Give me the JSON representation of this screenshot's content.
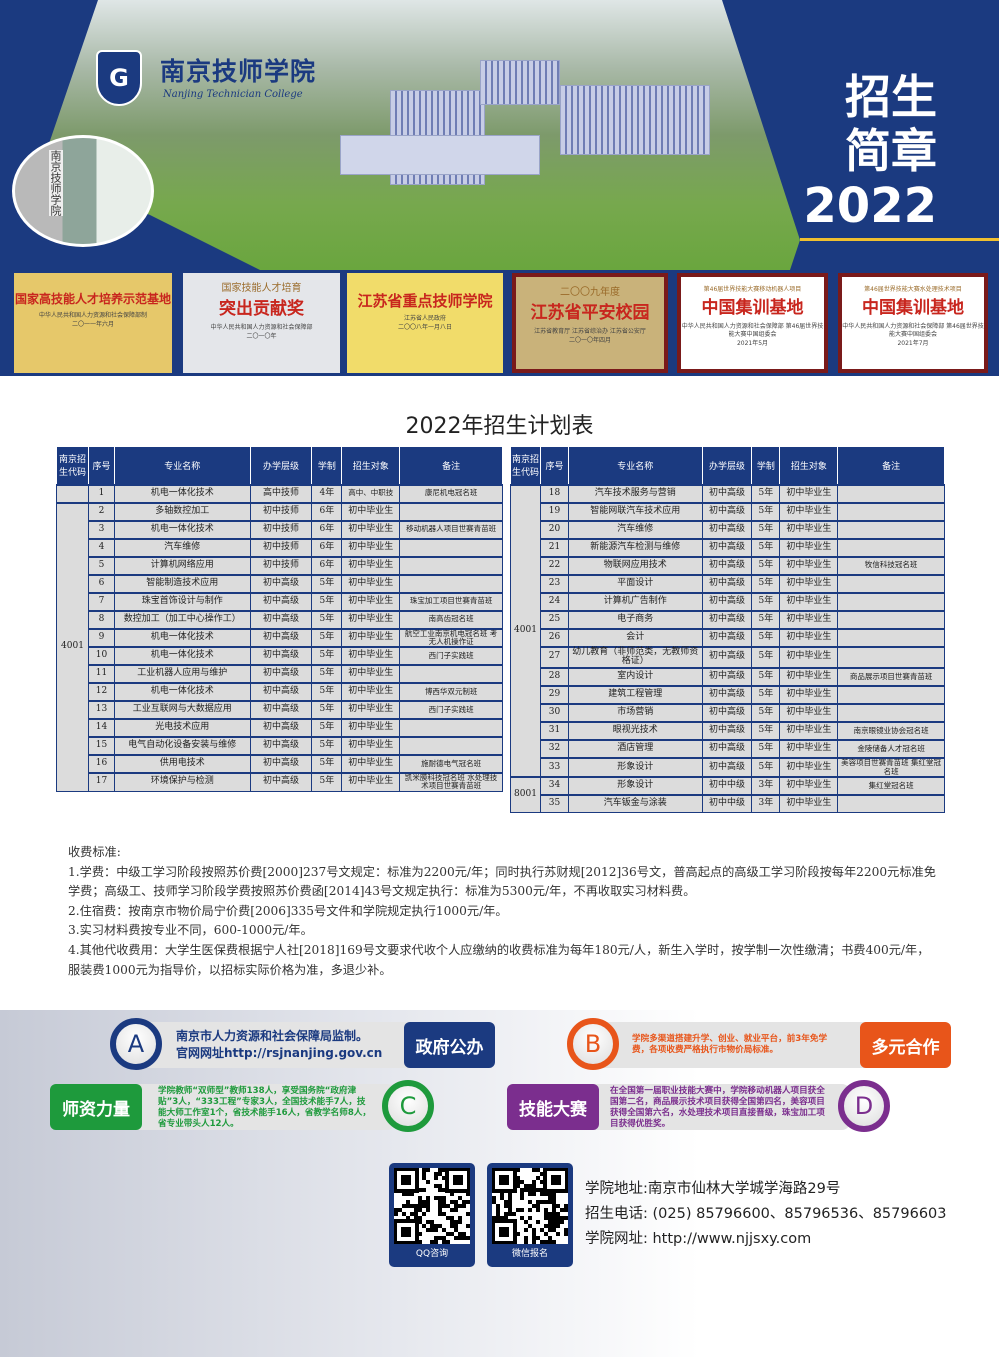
{
  "header": {
    "school_cn": "南京技师学院",
    "school_en": "Nanjing Technician College",
    "logo_letter": "G",
    "gate_sign": "南京技师学院",
    "title_line1": "招生",
    "title_line2": "简章",
    "year": "2022"
  },
  "awards": [
    {
      "top": "",
      "main": "国家高技能人才培养示范基地",
      "issuer": "中华人民共和国人力资源和社会保障部制",
      "date": "二〇一一年六月"
    },
    {
      "top": "国家技能人才培育",
      "main": "突出贡献奖",
      "issuer": "中华人民共和国人力资源和社会保障部",
      "date": "二〇一〇年"
    },
    {
      "top": "",
      "main": "江苏省重点技师学院",
      "issuer": "江苏省人民政府",
      "date": "二〇〇八年一月八日"
    },
    {
      "top": "二〇〇九年度",
      "main": "江苏省平安校园",
      "issuer": "江苏省教育厅 江苏省综治办 江苏省公安厅",
      "date": "二〇一〇年四月"
    },
    {
      "top": "第46届世界技能大赛移动机器人项目",
      "main": "中国集训基地",
      "issuer": "中华人民共和国人力资源和社会保障部 第46届世界技能大赛中国组委会",
      "date": "2021年5月"
    },
    {
      "top": "第46届世界技能大赛水处理技术项目",
      "main": "中国集训基地",
      "issuer": "中华人民共和国人力资源和社会保障部 第46届世界技能大赛中国组委会",
      "date": "2021年7月"
    }
  ],
  "plan": {
    "title": "2022年招生计划表",
    "headers": [
      "南京招生代码",
      "序号",
      "专业名称",
      "办学层级",
      "学制",
      "招生对象",
      "备注"
    ],
    "left": [
      {
        "code": "",
        "rows": [
          [
            "1",
            "机电一体化技术",
            "高中技师",
            "4年",
            "高中、中职技",
            "康尼机电冠名班"
          ]
        ]
      },
      {
        "code": "4001",
        "rows": [
          [
            "2",
            "多轴数控加工",
            "初中技师",
            "6年",
            "初中毕业生",
            ""
          ],
          [
            "3",
            "机电一体化技术",
            "初中技师",
            "6年",
            "初中毕业生",
            "移动机器人项目世赛青苗班"
          ],
          [
            "4",
            "汽车维修",
            "初中技师",
            "6年",
            "初中毕业生",
            ""
          ],
          [
            "5",
            "计算机网络应用",
            "初中技师",
            "6年",
            "初中毕业生",
            ""
          ],
          [
            "6",
            "智能制造技术应用",
            "初中高级",
            "5年",
            "初中毕业生",
            ""
          ],
          [
            "7",
            "珠宝首饰设计与制作",
            "初中高级",
            "5年",
            "初中毕业生",
            "珠宝加工项目世赛青苗班"
          ],
          [
            "8",
            "数控加工（加工中心操作工）",
            "初中高级",
            "5年",
            "初中毕业生",
            "南高齿冠名班"
          ],
          [
            "9",
            "机电一体化技术",
            "初中高级",
            "5年",
            "初中毕业生",
            "航空工业南京机电冠名班 考无人机操作证"
          ],
          [
            "10",
            "机电一体化技术",
            "初中高级",
            "5年",
            "初中毕业生",
            "西门子实践班"
          ],
          [
            "11",
            "工业机器人应用与维护",
            "初中高级",
            "5年",
            "初中毕业生",
            ""
          ],
          [
            "12",
            "机电一体化技术",
            "初中高级",
            "5年",
            "初中毕业生",
            "博西华双元制班"
          ],
          [
            "13",
            "工业互联网与大数据应用",
            "初中高级",
            "5年",
            "初中毕业生",
            "西门子实践班"
          ],
          [
            "14",
            "光电技术应用",
            "初中高级",
            "5年",
            "初中毕业生",
            ""
          ],
          [
            "15",
            "电气自动化设备安装与维修",
            "初中高级",
            "5年",
            "初中毕业生",
            ""
          ],
          [
            "16",
            "供用电技术",
            "初中高级",
            "5年",
            "初中毕业生",
            "施耐德电气冠名班"
          ],
          [
            "17",
            "环境保护与检测",
            "初中高级",
            "5年",
            "初中毕业生",
            "凯米膜科技冠名班 水处理技术项目世赛青苗班"
          ]
        ]
      }
    ],
    "right": [
      {
        "code": "4001",
        "rows": [
          [
            "18",
            "汽车技术服务与营销",
            "初中高级",
            "5年",
            "初中毕业生",
            ""
          ],
          [
            "19",
            "智能网联汽车技术应用",
            "初中高级",
            "5年",
            "初中毕业生",
            ""
          ],
          [
            "20",
            "汽车维修",
            "初中高级",
            "5年",
            "初中毕业生",
            ""
          ],
          [
            "21",
            "新能源汽车检测与维修",
            "初中高级",
            "5年",
            "初中毕业生",
            ""
          ],
          [
            "22",
            "物联网应用技术",
            "初中高级",
            "5年",
            "初中毕业生",
            "牧信科技冠名班"
          ],
          [
            "23",
            "平面设计",
            "初中高级",
            "5年",
            "初中毕业生",
            ""
          ],
          [
            "24",
            "计算机广告制作",
            "初中高级",
            "5年",
            "初中毕业生",
            ""
          ],
          [
            "25",
            "电子商务",
            "初中高级",
            "5年",
            "初中毕业生",
            ""
          ],
          [
            "26",
            "会计",
            "初中高级",
            "5年",
            "初中毕业生",
            ""
          ],
          [
            "27",
            "幼儿教育（非师范类，无教师资格证）",
            "初中高级",
            "5年",
            "初中毕业生",
            ""
          ],
          [
            "28",
            "室内设计",
            "初中高级",
            "5年",
            "初中毕业生",
            "商品展示项目世赛青苗班"
          ],
          [
            "29",
            "建筑工程管理",
            "初中高级",
            "5年",
            "初中毕业生",
            ""
          ],
          [
            "30",
            "市场营销",
            "初中高级",
            "5年",
            "初中毕业生",
            ""
          ],
          [
            "31",
            "眼视光技术",
            "初中高级",
            "5年",
            "初中毕业生",
            "南京眼镜业协会冠名班"
          ],
          [
            "32",
            "酒店管理",
            "初中高级",
            "5年",
            "初中毕业生",
            "金陵储备人才冠名班"
          ],
          [
            "33",
            "形象设计",
            "初中高级",
            "5年",
            "初中毕业生",
            "美容项目世赛青苗班 集红堂冠名班"
          ]
        ]
      },
      {
        "code": "8001",
        "rows": [
          [
            "34",
            "形象设计",
            "初中中级",
            "3年",
            "初中毕业生",
            "集红堂冠名班"
          ],
          [
            "35",
            "汽车钣金与涂装",
            "初中中级",
            "3年",
            "初中毕业生",
            ""
          ]
        ]
      }
    ]
  },
  "fees": {
    "title": "收费标准:",
    "items": [
      "1.学费：中级工学习阶段按照苏价费[2000]237号文规定：标准为2200元/年；同时执行苏财规[2012]36号文，普高起点的高级工学习阶段按每年2200元标准免学费；高级工、技师学习阶段学费按照苏价费函[2014]43号文规定执行：标准为5300元/年，不再收取实习材料费。",
      "2.住宿费：按南京市物价局宁价费[2006]335号文件和学院规定执行1000元/年。",
      "3.实习材料费按专业不同，600-1000元/年。",
      "4.其他代收费用：大学生医保费根据宁人社[2018]169号文要求代收个人应缴纳的收费标准为每年180元/人，新生入学时，按学制一次性缴清；书费400元/年，服装费1000元为指导价，以招标实际价格为准，多退少补。"
    ]
  },
  "features": {
    "a": {
      "letter": "A",
      "tag": "政府公办",
      "line1": "南京市人力资源和社会保障局监制。",
      "line2": "官网网址http://rsjnanjing.gov.cn",
      "color": "#1b3a80"
    },
    "b": {
      "letter": "B",
      "tag": "多元合作",
      "text": "学院多渠道搭建升学、创业、就业平台，前3年免学费，各项收费严格执行市物价局标准。",
      "color": "#e8551a"
    },
    "c": {
      "letter": "C",
      "tag": "师资力量",
      "text": "学院教师“双师型”教师138人，享受国务院“政府津贴”3人，“333工程”专家3人，全国技术能手7人，技能大师工作室1个，省技术能手16人，省教学名师8人，省专业带头人12人。",
      "color": "#1e9a3c"
    },
    "d": {
      "letter": "D",
      "tag": "技能大赛",
      "text": "在全国第一届职业技能大赛中，学院移动机器人项目获全国第二名，商品展示技术项目获得全国第四名，美容项目获得全国第六名，水处理技术项目直接晋级，珠宝加工项目获得优胜奖。",
      "color": "#7b2e8e"
    }
  },
  "qr": [
    {
      "label": "QQ咨询"
    },
    {
      "label": "微信报名"
    }
  ],
  "contact": {
    "address": "学院地址:南京市仙林大学城学海路29号",
    "phone": "招生电话: (025) 85796600、85796536、85796603",
    "website": "学院网址: http://www.njjsxy.com"
  }
}
